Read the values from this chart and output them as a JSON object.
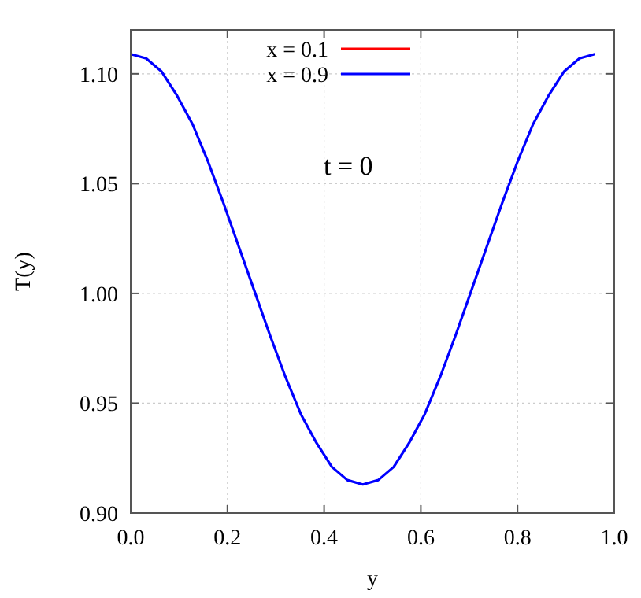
{
  "chart_data": {
    "type": "line",
    "xlabel": "y",
    "ylabel": "T(y)",
    "annotations": [
      "t = 0"
    ],
    "x": [
      0,
      0.032,
      0.064,
      0.096,
      0.128,
      0.16,
      0.192,
      0.224,
      0.256,
      0.288,
      0.32,
      0.352,
      0.384,
      0.416,
      0.448,
      0.48,
      0.512,
      0.544,
      0.576,
      0.608,
      0.64,
      0.672,
      0.704,
      0.736,
      0.768,
      0.8,
      0.832,
      0.864,
      0.896,
      0.928,
      0.96
    ],
    "series": [
      {
        "name": "x = 0.1",
        "color": "#ff0000",
        "values": [
          null,
          null,
          null,
          null,
          null,
          null,
          null,
          null,
          null,
          null,
          null,
          null,
          null,
          null,
          null,
          null,
          null,
          null,
          null,
          null,
          null,
          null,
          null,
          null,
          null,
          null,
          null,
          null,
          null,
          null,
          null
        ]
      },
      {
        "name": "x = 0.9",
        "color": "#0000ff",
        "values": [
          1.109,
          1.107,
          1.101,
          1.09,
          1.077,
          1.06,
          1.041,
          1.021,
          1.001,
          0.981,
          0.962,
          0.945,
          0.932,
          0.921,
          0.915,
          0.913,
          0.915,
          0.921,
          0.932,
          0.945,
          0.962,
          0.981,
          1.001,
          1.021,
          1.041,
          1.06,
          1.077,
          1.09,
          1.101,
          1.107,
          1.109
        ]
      }
    ],
    "xlim": [
      0,
      1
    ],
    "xticks": [
      {
        "value": 0,
        "label": "0.0"
      },
      0.2,
      0.4,
      0.6,
      0.8,
      {
        "value": 1,
        "label": "1.0"
      }
    ],
    "ylim": [
      0.9,
      1.12
    ],
    "yticks": [
      {
        "value": 0.9,
        "label": "0.90"
      },
      0.95,
      {
        "value": 1,
        "label": "1.00"
      },
      1.05,
      {
        "value": 1.1,
        "label": "1.10"
      }
    ],
    "grid": true,
    "legend": "top",
    "marker": "none",
    "line_style": "solid"
  }
}
